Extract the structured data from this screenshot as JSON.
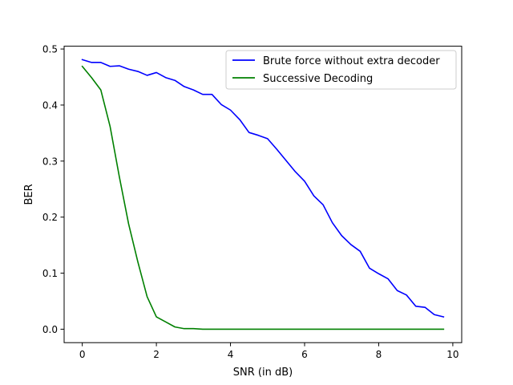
{
  "chart_data": {
    "type": "line",
    "title": "",
    "xlabel": "SNR (in dB)",
    "ylabel": "BER",
    "xlim": [
      -0.49,
      10.24
    ],
    "ylim": [
      -0.024,
      0.505
    ],
    "xticks": [
      0,
      2,
      4,
      6,
      8,
      10
    ],
    "yticks": [
      0.0,
      0.1,
      0.2,
      0.3,
      0.4,
      0.5
    ],
    "xtick_labels": [
      "0",
      "2",
      "4",
      "6",
      "8",
      "10"
    ],
    "ytick_labels": [
      "0.0",
      "0.1",
      "0.2",
      "0.3",
      "0.4",
      "0.5"
    ],
    "grid": false,
    "legend_position": "top-right",
    "x": [
      0,
      0.25,
      0.5,
      0.75,
      1,
      1.25,
      1.5,
      1.75,
      2,
      2.25,
      2.5,
      2.75,
      3,
      3.25,
      3.5,
      3.75,
      4,
      4.25,
      4.5,
      4.75,
      5,
      5.25,
      5.5,
      5.75,
      6,
      6.25,
      6.5,
      6.75,
      7,
      7.25,
      7.5,
      7.75,
      8,
      8.25,
      8.5,
      8.75,
      9,
      9.25,
      9.5,
      9.75
    ],
    "series": [
      {
        "name": "Brute force without extra decoder",
        "color": "#0000ff",
        "values": [
          0.481,
          0.476,
          0.476,
          0.469,
          0.47,
          0.464,
          0.46,
          0.453,
          0.458,
          0.449,
          0.444,
          0.433,
          0.427,
          0.419,
          0.419,
          0.401,
          0.391,
          0.374,
          0.351,
          0.346,
          0.34,
          0.321,
          0.301,
          0.281,
          0.264,
          0.238,
          0.222,
          0.19,
          0.167,
          0.151,
          0.139,
          0.109,
          0.099,
          0.09,
          0.069,
          0.061,
          0.041,
          0.039,
          0.026,
          0.022
        ]
      },
      {
        "name": "Successive Decoding",
        "color": "#008000",
        "values": [
          0.469,
          0.449,
          0.427,
          0.362,
          0.272,
          0.188,
          0.12,
          0.058,
          0.022,
          0.013,
          0.004,
          0.001,
          0.001,
          0.0,
          0.0,
          0.0,
          0.0,
          0.0,
          0.0,
          0.0,
          0.0,
          0.0,
          0.0,
          0.0,
          0.0,
          0.0,
          0.0,
          0.0,
          0.0,
          0.0,
          0.0,
          0.0,
          0.0,
          0.0,
          0.0,
          0.0,
          0.0,
          0.0,
          0.0,
          0.0
        ]
      }
    ]
  }
}
